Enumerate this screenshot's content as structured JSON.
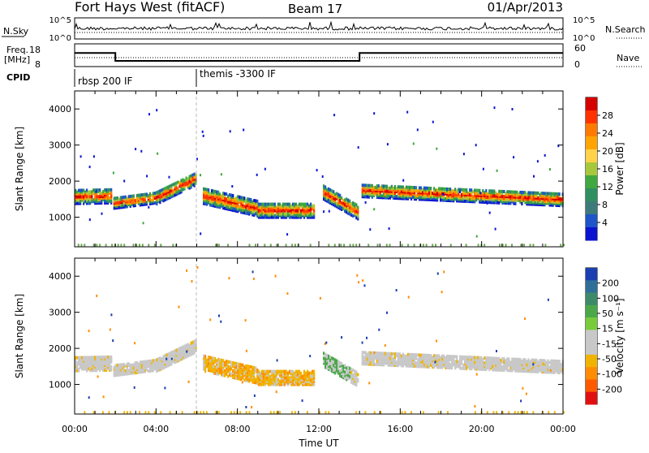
{
  "header": {
    "site": "Fort Hays West (fitACF)",
    "beam": "Beam 17",
    "date": "01/Apr/2013"
  },
  "noise_panel": {
    "left_label": "N.Sky",
    "left_ticks": [
      "10^5",
      "10^0"
    ],
    "right_label": "N.Search",
    "right_ticks": [
      "10^5",
      "10^0"
    ]
  },
  "freq_panel": {
    "left_label_line1": "Freq.",
    "left_label_line2": "[MHz]",
    "left_ticks": [
      "18",
      "8"
    ],
    "right_label": "Nave",
    "right_ticks": [
      "60",
      "0"
    ]
  },
  "cpid_panel": {
    "label": "CPID",
    "segments": [
      {
        "label": "rbsp 200 IF",
        "start_hour": 0
      },
      {
        "label": "themis -3300 IF",
        "start_hour": 6
      }
    ]
  },
  "power_panel": {
    "ylabel": "Slant Range [km]",
    "colorbar_label": "Power [dB]",
    "colorbar_ticks": [
      "28",
      "24",
      "20",
      "16",
      "12",
      "8",
      "4"
    ],
    "colorbar_colors": [
      "#d50000",
      "#ff3300",
      "#ff7a00",
      "#ffa400",
      "#ffd24a",
      "#a8c83c",
      "#3fa83f",
      "#2f8f60",
      "#3d7b7b",
      "#1e55c8",
      "#0a14d0"
    ]
  },
  "velocity_panel": {
    "ylabel": "Slant Range [km]",
    "colorbar_label": "Velocity [m s⁻¹]",
    "colorbar_ticks": [
      "200",
      "100",
      "50",
      "15",
      "-15",
      "-50",
      "-100",
      "-200"
    ],
    "colorbar_colors": [
      "#1a3fb0",
      "#2e6f9a",
      "#3c8a6a",
      "#4aa84a",
      "#78cc3c",
      "#c8c8c8",
      "#c8c8c8",
      "#f0b400",
      "#ff8c00",
      "#ff5a00",
      "#e01010"
    ]
  },
  "chart_data": {
    "type": "heatmap",
    "title": "Fort Hays West (fitACF)  Beam 17  01/Apr/2013",
    "xlabel": "Time UT",
    "x_ticks": [
      "00:00",
      "04:00",
      "08:00",
      "12:00",
      "16:00",
      "20:00",
      "00:00"
    ],
    "xlim_hours": [
      0,
      24
    ],
    "ylim_km": [
      180,
      4500
    ],
    "y_ticks": [
      1000,
      2000,
      3000,
      4000
    ],
    "frequency_series": [
      {
        "start_hour": 0,
        "end_hour": 2.0,
        "value_mhz": 14
      },
      {
        "start_hour": 2.0,
        "end_hour": 14.0,
        "value_mhz": 10.5
      },
      {
        "start_hour": 14.0,
        "end_hour": 24.0,
        "value_mhz": 14
      }
    ],
    "echo_bands": [
      {
        "start_hour": 0.0,
        "end_hour": 1.8,
        "center_start_km": 1580,
        "center_end_km": 1600,
        "halfwidth_km": 200
      },
      {
        "start_hour": 1.9,
        "end_hour": 4.0,
        "center_start_km": 1400,
        "center_end_km": 1550,
        "halfwidth_km": 150
      },
      {
        "start_hour": 4.0,
        "end_hour": 6.0,
        "center_start_km": 1550,
        "center_end_km": 2100,
        "halfwidth_km": 180
      },
      {
        "start_hour": 6.3,
        "end_hour": 9.0,
        "center_start_km": 1600,
        "center_end_km": 1250,
        "halfwidth_km": 220
      },
      {
        "start_hour": 9.0,
        "end_hour": 11.8,
        "center_start_km": 1200,
        "center_end_km": 1200,
        "halfwidth_km": 200
      },
      {
        "start_hour": 12.2,
        "end_hour": 13.9,
        "center_start_km": 1700,
        "center_end_km": 1150,
        "halfwidth_km": 200
      },
      {
        "start_hour": 14.1,
        "end_hour": 24.0,
        "center_start_km": 1750,
        "center_end_km": 1500,
        "halfwidth_km": 180
      }
    ]
  }
}
